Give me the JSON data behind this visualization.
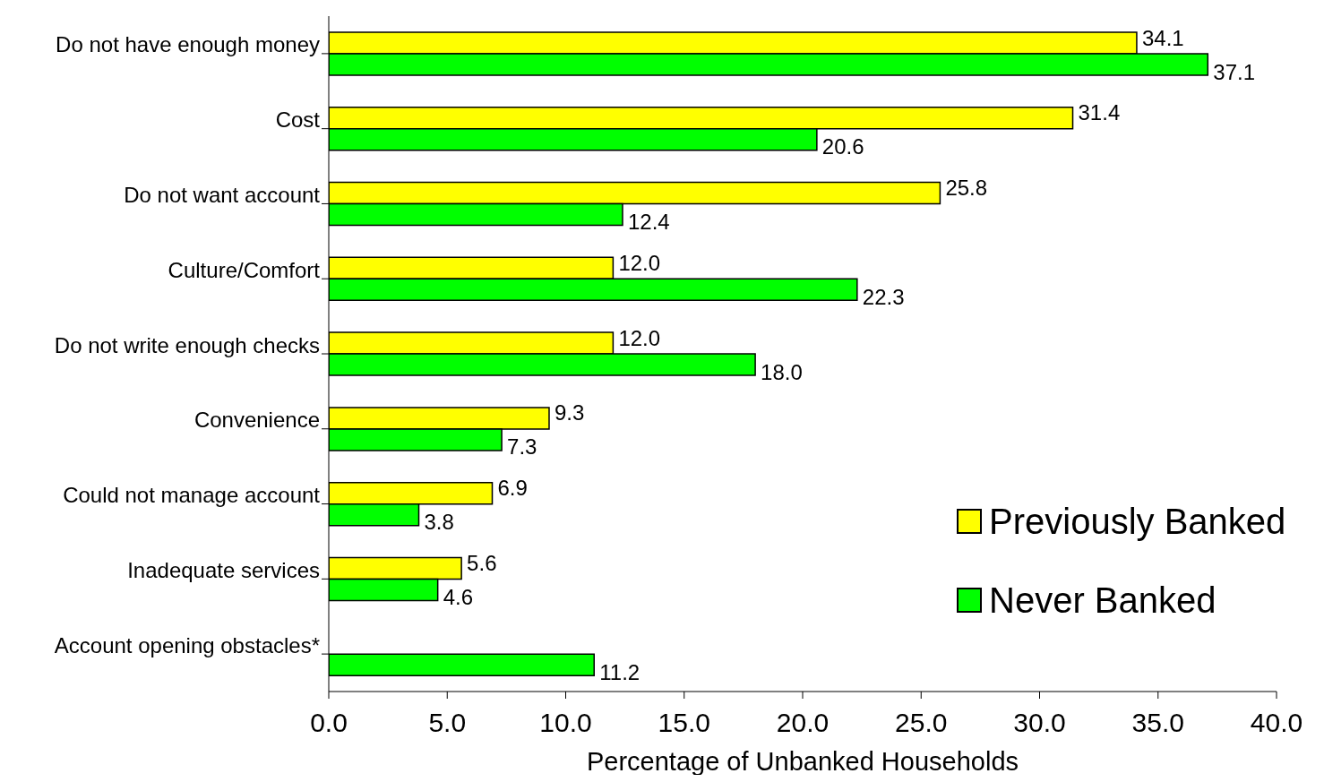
{
  "chart_data": {
    "type": "bar",
    "orientation": "horizontal",
    "xlabel": "Percentage of Unbanked Households",
    "categories": [
      "Do not have enough money",
      "Cost",
      "Do not want account",
      "Culture/Comfort",
      "Do not write enough checks",
      "Convenience",
      "Could not manage account",
      "Inadequate services",
      "Account opening obstacles*"
    ],
    "series": [
      {
        "name": "Previously Banked",
        "color": "#ffff00",
        "values": [
          34.1,
          31.4,
          25.8,
          12.0,
          12.0,
          9.3,
          6.9,
          5.6,
          null
        ],
        "value_labels": [
          "34.1",
          "31.4",
          "25.8",
          "12.0",
          "12.0",
          "9.3",
          "6.9",
          "5.6",
          null
        ]
      },
      {
        "name": "Never Banked",
        "color": "#00ff00",
        "values": [
          37.1,
          20.6,
          12.4,
          22.3,
          18.0,
          7.3,
          3.8,
          4.6,
          11.2
        ],
        "value_labels": [
          "37.1",
          "20.6",
          "12.4",
          "22.3",
          "18.0",
          "7.3",
          "3.8",
          "4.6",
          "11.2"
        ]
      }
    ],
    "xlim": [
      0,
      40
    ],
    "xticks": [
      {
        "value": 0,
        "label": "0.0"
      },
      {
        "value": 5,
        "label": "5.0"
      },
      {
        "value": 10,
        "label": "10.0"
      },
      {
        "value": 15,
        "label": "15.0"
      },
      {
        "value": 20,
        "label": "20.0"
      },
      {
        "value": 25,
        "label": "25.0"
      },
      {
        "value": 30,
        "label": "30.0"
      },
      {
        "value": 35,
        "label": "35.0"
      },
      {
        "value": 40,
        "label": "40.0"
      }
    ],
    "legend": "bottom right",
    "grid": false
  }
}
